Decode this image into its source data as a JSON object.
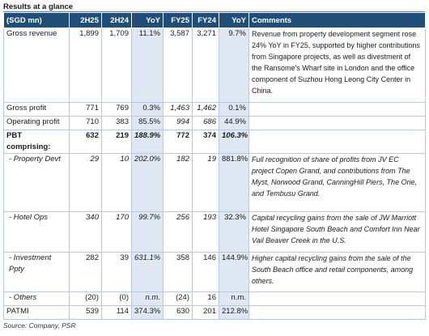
{
  "title": "Results at a glance",
  "headers": {
    "metric": "(SGD mn)",
    "h2_25": "2H25",
    "h2_24": "2H24",
    "yoy1": "YoY",
    "fy25": "FY25",
    "fy24": "FY24",
    "yoy2": "YoY",
    "comments": "Comments"
  },
  "rows": [
    {
      "label": "Gross revenue",
      "h2_25": "1,899",
      "h2_24": "1,709",
      "yoy1": "11.1%",
      "fy25": "3,587",
      "fy24": "3,271",
      "yoy2": "9.7%",
      "comment": "Revenue from property development segment rose 24% YoY in FY25, supported by higher contributions from Singapore projects, as well as divestment of the Ransome's Wharf site in London and the office component of Suzhou Hong Leong City Center in China."
    },
    {
      "label": "Gross profit",
      "h2_25": "771",
      "h2_24": "769",
      "yoy1": "0.3%",
      "fy25": "1,463",
      "fy24": "1,462",
      "yoy2": "0.1%",
      "comment": ""
    },
    {
      "label": "Operating profit",
      "h2_25": "710",
      "h2_24": "383",
      "yoy1": "85.5%",
      "fy25": "994",
      "fy24": "686",
      "yoy2": "44.9%",
      "comment": ""
    },
    {
      "label": "PBT comprising:",
      "h2_25": "632",
      "h2_24": "219",
      "yoy1": "188.9%",
      "fy25": "772",
      "fy24": "374",
      "yoy2": "106.3%",
      "comment": ""
    },
    {
      "label": "- Property Devt",
      "h2_25": "29",
      "h2_24": "10",
      "yoy1": "202.0%",
      "fy25": "182",
      "fy24": "19",
      "yoy2": "881.8%",
      "comment": "Full recognition of share of profits from JV EC project Copen Grand, and contributions from The Myst, Norwood Grand, CanningHill Piers, The Orie, and Tembusu Grand."
    },
    {
      "label": "- Hotel Ops",
      "h2_25": "340",
      "h2_24": "170",
      "yoy1": "99.7%",
      "fy25": "256",
      "fy24": "193",
      "yoy2": "32.3%",
      "comment": "Capital recycling gains from the sale of JW Marriott Hotel Singapore South Beach and Comfort Inn Near Vail Beaver Creek in the U.S."
    },
    {
      "label": "- Investment Ppty",
      "h2_25": "282",
      "h2_24": "39",
      "yoy1": "631.1%",
      "fy25": "358",
      "fy24": "146",
      "yoy2": "144.9%",
      "comment": "Higher capital recycling gains from the sale of the South Beach office and retail components, among others."
    },
    {
      "label": "- Others",
      "h2_25": "(20)",
      "h2_24": "(0)",
      "yoy1": "n.m.",
      "fy25": "(24)",
      "fy24": "16",
      "yoy2": "n.m.",
      "comment": ""
    },
    {
      "label": "PATMI",
      "h2_25": "539",
      "h2_24": "114",
      "yoy1": "374.3%",
      "fy25": "630",
      "fy24": "201",
      "yoy2": "212.8%",
      "comment": ""
    }
  ],
  "source": "Source: Company, PSR"
}
